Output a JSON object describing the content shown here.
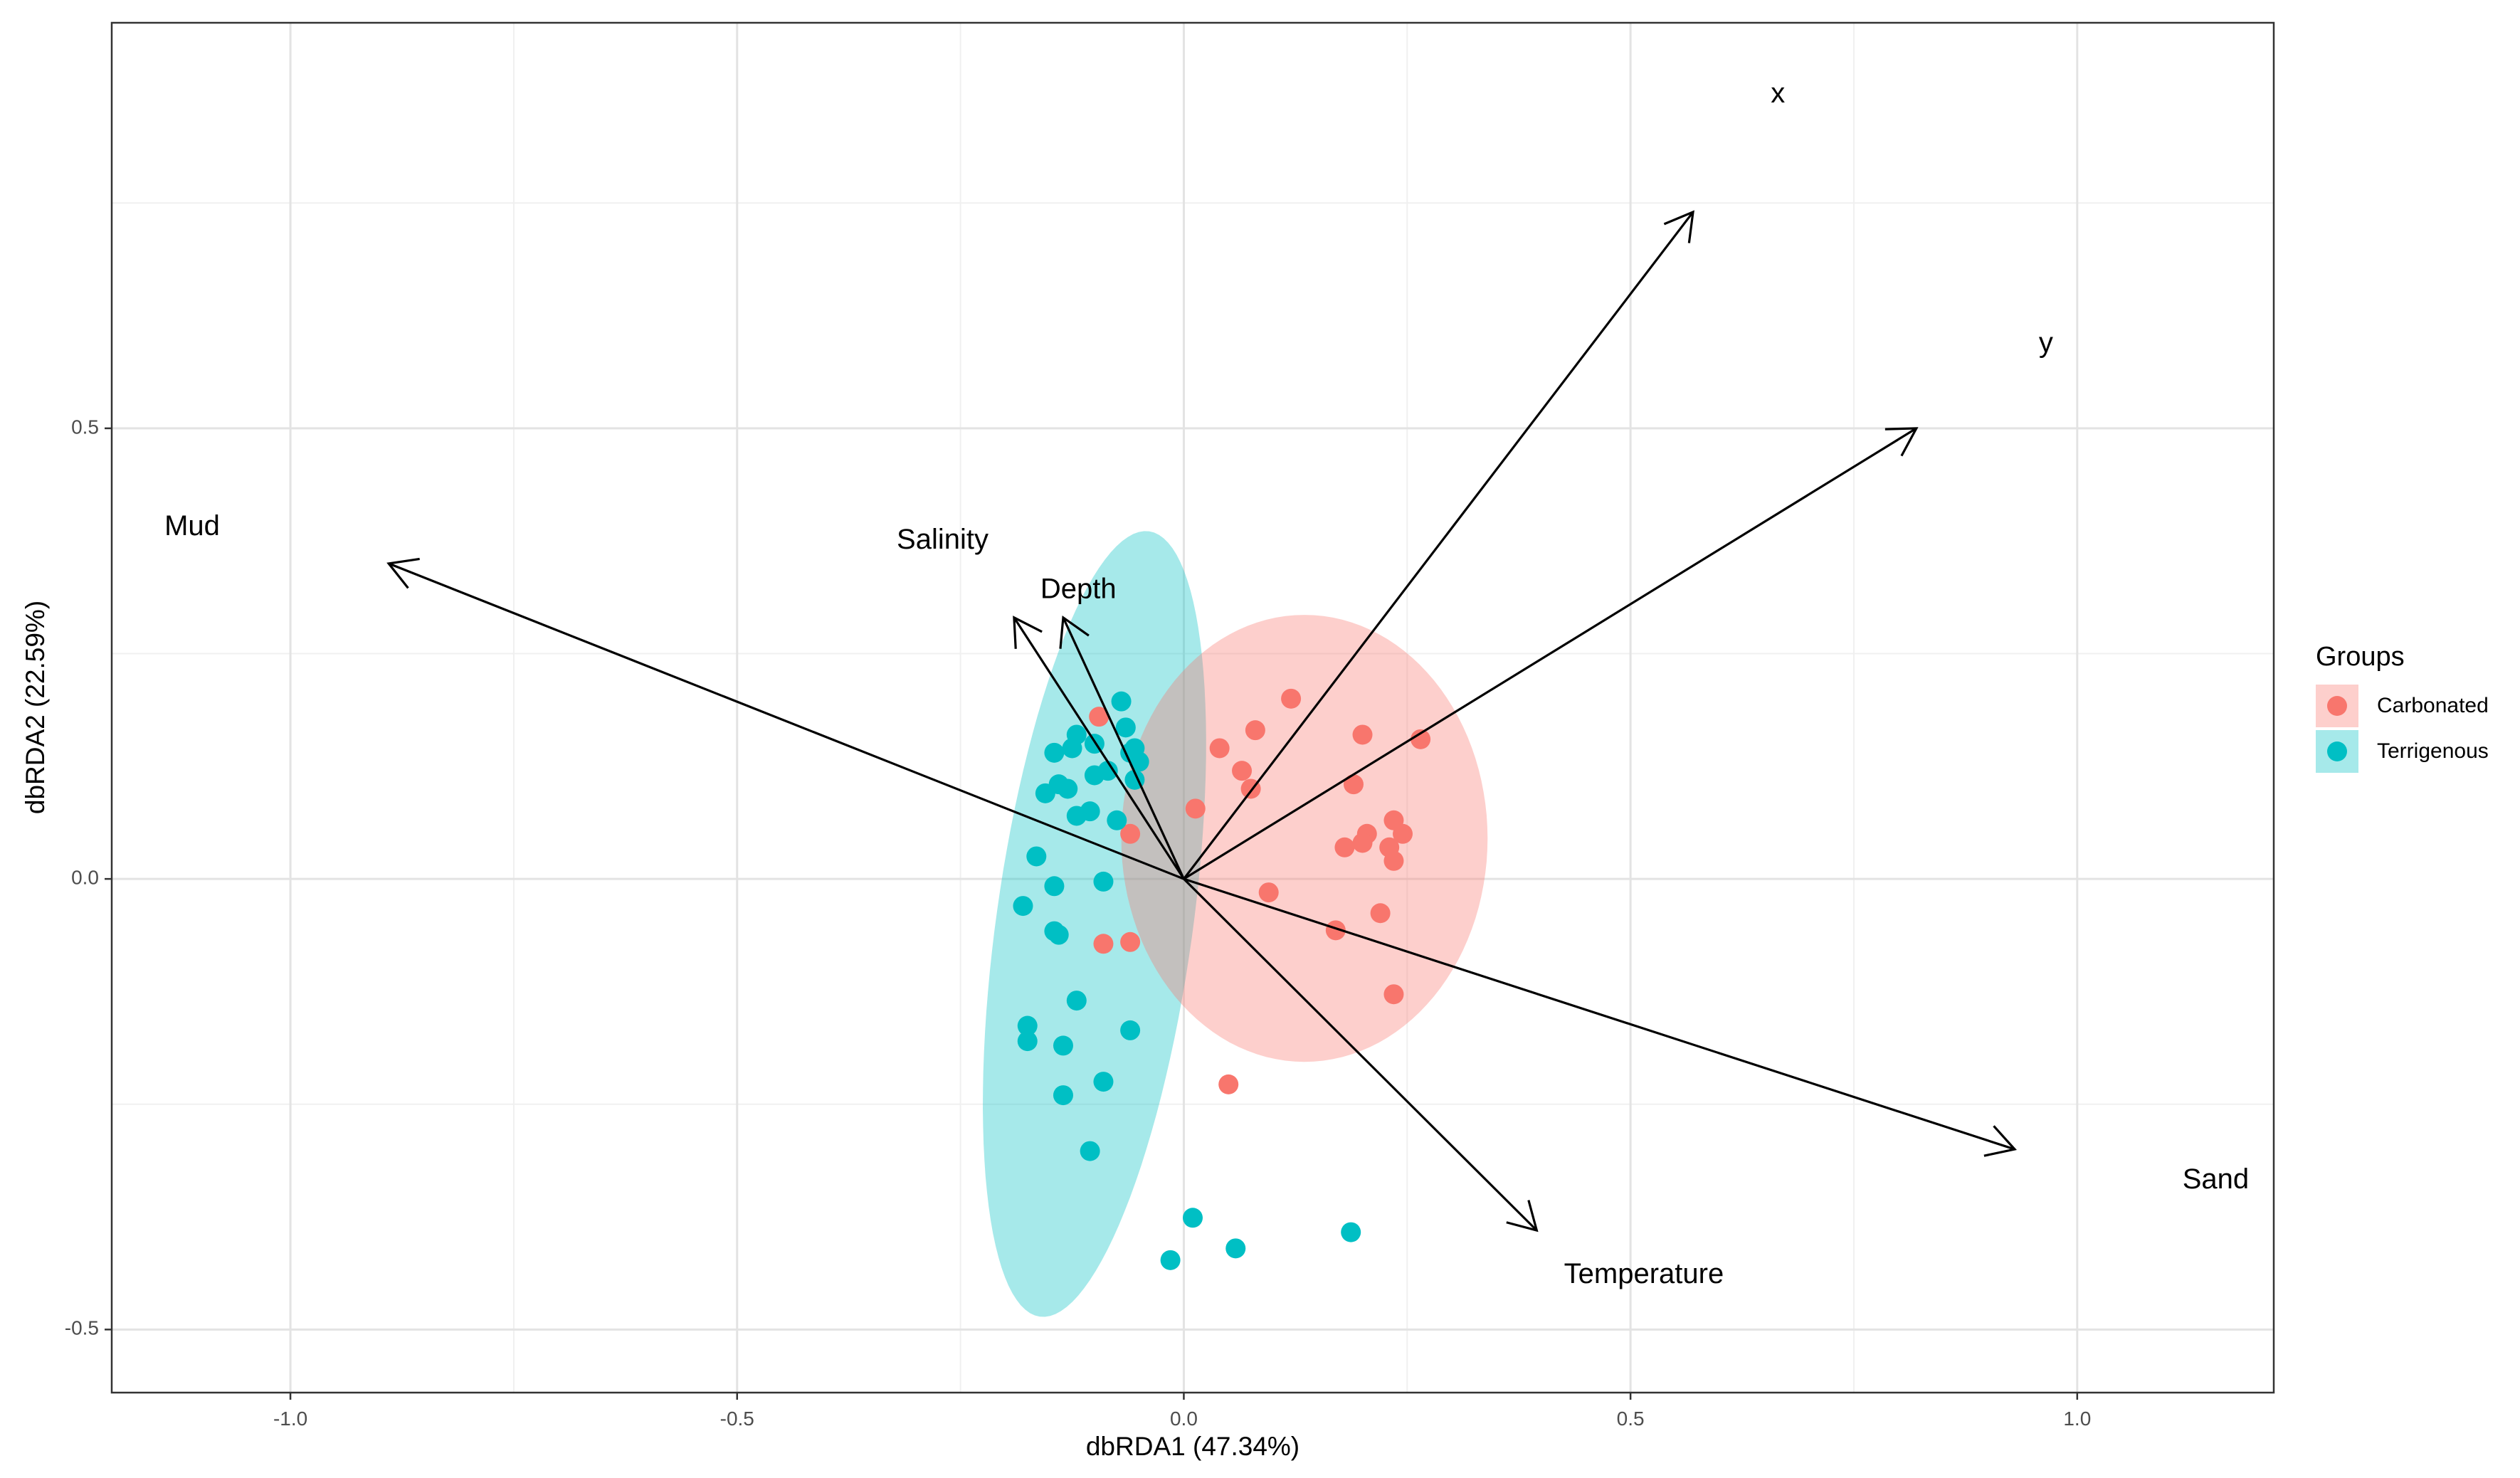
{
  "chart_data": {
    "type": "scatter",
    "title": "",
    "xlabel": "dbRDA1 (47.34%)",
    "ylabel": "dbRDA2 (22.59%)",
    "xlim": [
      -1.2,
      1.22
    ],
    "ylim": [
      -0.57,
      0.95
    ],
    "x_ticks": [
      -1.0,
      -0.5,
      0.0,
      0.5,
      1.0
    ],
    "x_tick_labels": [
      "-1.0",
      "-0.5",
      "0.0",
      "0.5",
      "1.0"
    ],
    "y_ticks": [
      -0.5,
      0.0,
      0.5
    ],
    "y_tick_labels": [
      "-0.5",
      "0.0",
      "0.5"
    ],
    "grid": true,
    "legend": {
      "title": "Groups",
      "position": "right",
      "entries": [
        {
          "name": "Carbonated",
          "color": "#f8766d"
        },
        {
          "name": "Terrigenous",
          "color": "#00bfc4"
        }
      ]
    },
    "series": [
      {
        "name": "Carbonated",
        "color": "#f8766d",
        "points": [
          [
            0.12,
            0.2
          ],
          [
            0.04,
            0.145
          ],
          [
            0.08,
            0.165
          ],
          [
            0.065,
            0.12
          ],
          [
            0.075,
            0.1
          ],
          [
            0.2,
            0.16
          ],
          [
            0.265,
            0.155
          ],
          [
            0.19,
            0.105
          ],
          [
            0.235,
            0.065
          ],
          [
            0.245,
            0.05
          ],
          [
            0.205,
            0.05
          ],
          [
            0.2,
            0.04
          ],
          [
            0.18,
            0.035
          ],
          [
            0.23,
            0.035
          ],
          [
            0.235,
            0.02
          ],
          [
            0.095,
            -0.015
          ],
          [
            0.22,
            -0.038
          ],
          [
            0.17,
            -0.057
          ],
          [
            0.235,
            -0.128
          ],
          [
            0.05,
            -0.228
          ],
          [
            0.013,
            0.078
          ],
          [
            -0.06,
            0.05
          ],
          [
            -0.095,
            0.18
          ],
          [
            -0.09,
            -0.072
          ],
          [
            -0.06,
            -0.07
          ]
        ]
      },
      {
        "name": "Terrigenous",
        "color": "#00bfc4",
        "points": [
          [
            -0.07,
            0.197
          ],
          [
            -0.065,
            0.168
          ],
          [
            -0.06,
            0.14
          ],
          [
            -0.055,
            0.145
          ],
          [
            -0.05,
            0.13
          ],
          [
            -0.055,
            0.11
          ],
          [
            -0.1,
            0.15
          ],
          [
            -0.12,
            0.16
          ],
          [
            -0.125,
            0.145
          ],
          [
            -0.145,
            0.14
          ],
          [
            -0.1,
            0.115
          ],
          [
            -0.085,
            0.12
          ],
          [
            -0.14,
            0.105
          ],
          [
            -0.13,
            0.1
          ],
          [
            -0.155,
            0.095
          ],
          [
            -0.105,
            0.075
          ],
          [
            -0.12,
            0.07
          ],
          [
            -0.075,
            0.065
          ],
          [
            -0.165,
            0.025
          ],
          [
            -0.09,
            -0.003
          ],
          [
            -0.145,
            -0.008
          ],
          [
            -0.18,
            -0.03
          ],
          [
            -0.145,
            -0.058
          ],
          [
            -0.14,
            -0.062
          ],
          [
            -0.12,
            -0.135
          ],
          [
            -0.175,
            -0.163
          ],
          [
            -0.175,
            -0.18
          ],
          [
            -0.135,
            -0.185
          ],
          [
            -0.06,
            -0.168
          ],
          [
            -0.09,
            -0.225
          ],
          [
            -0.135,
            -0.24
          ],
          [
            -0.105,
            -0.302
          ],
          [
            0.01,
            -0.376
          ],
          [
            -0.015,
            -0.423
          ],
          [
            0.058,
            -0.41
          ],
          [
            0.187,
            -0.392
          ]
        ]
      }
    ],
    "ellipses": [
      {
        "group": "Terrigenous",
        "color": "#00bfc4",
        "cx": -0.1,
        "cy": -0.05,
        "rx": 0.44,
        "ry": 0.11,
        "angle_deg": 82
      },
      {
        "group": "Carbonated",
        "color": "#f8766d",
        "cx": 0.135,
        "cy": 0.045,
        "rx": 0.205,
        "ry": 0.248,
        "angle_deg": 0
      }
    ],
    "arrows": [
      {
        "label": "Mud",
        "x": -0.89,
        "y": 0.35,
        "label_x": -1.11,
        "label_y": 0.39
      },
      {
        "label": "Salinity",
        "x": -0.19,
        "y": 0.29,
        "label_x": -0.27,
        "label_y": 0.375
      },
      {
        "label": "Depth",
        "x": -0.135,
        "y": 0.29,
        "label_x": -0.118,
        "label_y": 0.32
      },
      {
        "label": "x",
        "x": 0.57,
        "y": 0.74,
        "label_x": 0.665,
        "label_y": 0.87
      },
      {
        "label": "y",
        "x": 0.82,
        "y": 0.5,
        "label_x": 0.965,
        "label_y": 0.593
      },
      {
        "label": "Sand",
        "x": 0.93,
        "y": -0.3,
        "label_x": 1.155,
        "label_y": -0.335
      },
      {
        "label": "Temperature",
        "x": 0.395,
        "y": -0.39,
        "label_x": 0.515,
        "label_y": -0.44
      }
    ]
  }
}
